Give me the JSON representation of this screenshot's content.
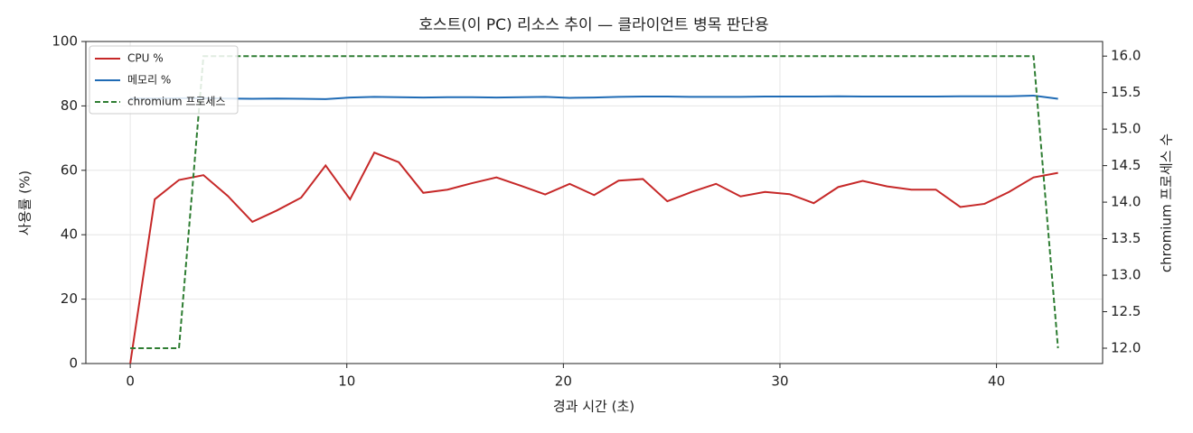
{
  "chart_data": {
    "type": "line",
    "title": "호스트(이 PC) 리소스 추이 — 클라이언트 병목 판단용",
    "x_label": "경과 시간 (초)",
    "y_label": "사용률 (%)",
    "y2_label": "chromium 프로세스 수",
    "x": [
      0,
      1.13,
      2.25,
      3.38,
      4.51,
      5.64,
      6.76,
      7.89,
      9.02,
      10.15,
      11.27,
      12.4,
      13.53,
      14.65,
      15.78,
      16.91,
      18.04,
      19.16,
      20.29,
      21.42,
      22.55,
      23.67,
      24.8,
      25.93,
      27.05,
      28.18,
      29.31,
      30.44,
      31.56,
      32.69,
      33.82,
      34.95,
      36.07,
      37.2,
      38.33,
      39.45,
      40.58,
      41.71,
      42.84
    ],
    "series": [
      {
        "name": "CPU %",
        "color": "#c62828",
        "style": "solid",
        "values": [
          0,
          51,
          57,
          58.5,
          52,
          44,
          47.5,
          51.5,
          61.5,
          51,
          65.5,
          62.5,
          53,
          54,
          56,
          57.8,
          55.2,
          52.5,
          55.8,
          52.3,
          56.8,
          57.3,
          50.4,
          53.3,
          55.8,
          51.9,
          53.3,
          52.6,
          49.8,
          54.8,
          56.7,
          55,
          54,
          54,
          48.6,
          49.6,
          53.3,
          57.8,
          59.2
        ]
      },
      {
        "name": "메모리 %",
        "color": "#1f6bb5",
        "style": "solid",
        "values": [
          82.3,
          82.3,
          82.4,
          82.4,
          82.3,
          82.2,
          82.3,
          82.2,
          82.1,
          82.6,
          82.8,
          82.7,
          82.6,
          82.7,
          82.7,
          82.6,
          82.7,
          82.8,
          82.5,
          82.6,
          82.8,
          82.9,
          82.9,
          82.8,
          82.8,
          82.8,
          82.9,
          82.9,
          82.9,
          83.0,
          82.9,
          82.9,
          82.9,
          82.9,
          83.0,
          83.0,
          83.0,
          83.2,
          82.2
        ]
      },
      {
        "name": "chromium 프로세스",
        "color": "#2e7d32",
        "style": "dashed",
        "axis": "y2",
        "values": [
          12,
          12,
          12,
          16,
          16,
          16,
          16,
          16,
          16,
          16,
          16,
          16,
          16,
          16,
          16,
          16,
          16,
          16,
          16,
          16,
          16,
          16,
          16,
          16,
          16,
          16,
          16,
          16,
          16,
          16,
          16,
          16,
          16,
          16,
          16,
          16,
          16,
          16,
          12
        ]
      }
    ],
    "xlim": [
      -2.05,
      44.9
    ],
    "xticks": [
      0,
      10,
      20,
      30,
      40
    ],
    "ylim": [
      0,
      100
    ],
    "yticks": [
      0,
      20,
      40,
      60,
      80,
      100
    ],
    "y2lim": [
      11.79,
      16.2
    ],
    "y2ticks": [
      {
        "value": 12,
        "label": "12.0"
      },
      12.5,
      {
        "value": 13,
        "label": "13.0"
      },
      13.5,
      {
        "value": 14,
        "label": "14.0"
      },
      14.5,
      {
        "value": 15,
        "label": "15.0"
      },
      15.5,
      {
        "value": 16,
        "label": "16.0"
      }
    ],
    "grid": true,
    "legend": "upper-left"
  }
}
